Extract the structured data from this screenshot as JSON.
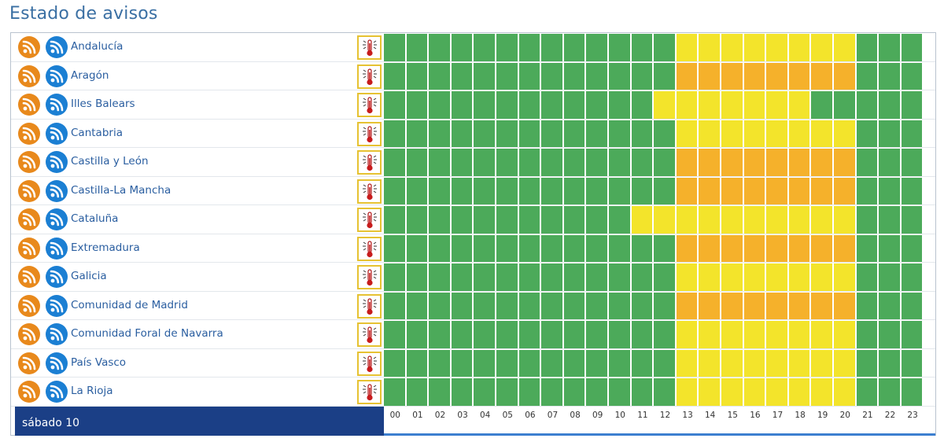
{
  "page_title": "Estado de avisos",
  "date_label": "sábado 10",
  "colors": {
    "green": "#4caa5a",
    "yellow": "#f3e42b",
    "orange": "#f5b12b",
    "title": "#3a6fa3",
    "date_bar": "#1b3f86",
    "rss_orange": "#e8891c",
    "rss_blue": "#1b7fd3"
  },
  "icons": {
    "feed_primary": "rss-icon",
    "feed_secondary": "rss-icon",
    "warning_type": "thermometer-icon"
  },
  "hours": [
    "00",
    "01",
    "02",
    "03",
    "04",
    "05",
    "06",
    "07",
    "08",
    "09",
    "10",
    "11",
    "12",
    "13",
    "14",
    "15",
    "16",
    "17",
    "18",
    "19",
    "20",
    "21",
    "22",
    "23"
  ],
  "regions": [
    {
      "name": "Andalucía",
      "levels": [
        "g",
        "g",
        "g",
        "g",
        "g",
        "g",
        "g",
        "g",
        "g",
        "g",
        "g",
        "g",
        "g",
        "y",
        "y",
        "y",
        "y",
        "y",
        "y",
        "y",
        "y",
        "g",
        "g",
        "g"
      ]
    },
    {
      "name": "Aragón",
      "levels": [
        "g",
        "g",
        "g",
        "g",
        "g",
        "g",
        "g",
        "g",
        "g",
        "g",
        "g",
        "g",
        "g",
        "o",
        "o",
        "o",
        "o",
        "o",
        "o",
        "o",
        "o",
        "g",
        "g",
        "g"
      ]
    },
    {
      "name": "Illes Balears",
      "levels": [
        "g",
        "g",
        "g",
        "g",
        "g",
        "g",
        "g",
        "g",
        "g",
        "g",
        "g",
        "g",
        "y",
        "y",
        "y",
        "y",
        "y",
        "y",
        "y",
        "g",
        "g",
        "g",
        "g",
        "g"
      ]
    },
    {
      "name": "Cantabria",
      "levels": [
        "g",
        "g",
        "g",
        "g",
        "g",
        "g",
        "g",
        "g",
        "g",
        "g",
        "g",
        "g",
        "g",
        "y",
        "y",
        "y",
        "y",
        "y",
        "y",
        "y",
        "y",
        "g",
        "g",
        "g"
      ]
    },
    {
      "name": "Castilla y León",
      "levels": [
        "g",
        "g",
        "g",
        "g",
        "g",
        "g",
        "g",
        "g",
        "g",
        "g",
        "g",
        "g",
        "g",
        "o",
        "o",
        "o",
        "o",
        "o",
        "o",
        "o",
        "o",
        "g",
        "g",
        "g"
      ]
    },
    {
      "name": "Castilla-La Mancha",
      "levels": [
        "g",
        "g",
        "g",
        "g",
        "g",
        "g",
        "g",
        "g",
        "g",
        "g",
        "g",
        "g",
        "g",
        "o",
        "o",
        "o",
        "o",
        "o",
        "o",
        "o",
        "o",
        "g",
        "g",
        "g"
      ]
    },
    {
      "name": "Cataluña",
      "levels": [
        "g",
        "g",
        "g",
        "g",
        "g",
        "g",
        "g",
        "g",
        "g",
        "g",
        "g",
        "y",
        "y",
        "y",
        "y",
        "y",
        "y",
        "y",
        "y",
        "y",
        "y",
        "g",
        "g",
        "g"
      ]
    },
    {
      "name": "Extremadura",
      "levels": [
        "g",
        "g",
        "g",
        "g",
        "g",
        "g",
        "g",
        "g",
        "g",
        "g",
        "g",
        "g",
        "g",
        "o",
        "o",
        "o",
        "o",
        "o",
        "o",
        "o",
        "o",
        "g",
        "g",
        "g"
      ]
    },
    {
      "name": "Galicia",
      "levels": [
        "g",
        "g",
        "g",
        "g",
        "g",
        "g",
        "g",
        "g",
        "g",
        "g",
        "g",
        "g",
        "g",
        "y",
        "y",
        "y",
        "y",
        "y",
        "y",
        "y",
        "y",
        "g",
        "g",
        "g"
      ]
    },
    {
      "name": "Comunidad de Madrid",
      "levels": [
        "g",
        "g",
        "g",
        "g",
        "g",
        "g",
        "g",
        "g",
        "g",
        "g",
        "g",
        "g",
        "g",
        "o",
        "o",
        "o",
        "o",
        "o",
        "o",
        "o",
        "o",
        "g",
        "g",
        "g"
      ]
    },
    {
      "name": "Comunidad Foral de Navarra",
      "levels": [
        "g",
        "g",
        "g",
        "g",
        "g",
        "g",
        "g",
        "g",
        "g",
        "g",
        "g",
        "g",
        "g",
        "y",
        "y",
        "y",
        "y",
        "y",
        "y",
        "y",
        "y",
        "g",
        "g",
        "g"
      ]
    },
    {
      "name": "País Vasco",
      "levels": [
        "g",
        "g",
        "g",
        "g",
        "g",
        "g",
        "g",
        "g",
        "g",
        "g",
        "g",
        "g",
        "g",
        "y",
        "y",
        "y",
        "y",
        "y",
        "y",
        "y",
        "y",
        "g",
        "g",
        "g"
      ]
    },
    {
      "name": "La Rioja",
      "levels": [
        "g",
        "g",
        "g",
        "g",
        "g",
        "g",
        "g",
        "g",
        "g",
        "g",
        "g",
        "g",
        "g",
        "y",
        "y",
        "y",
        "y",
        "y",
        "y",
        "y",
        "y",
        "g",
        "g",
        "g"
      ]
    }
  ]
}
